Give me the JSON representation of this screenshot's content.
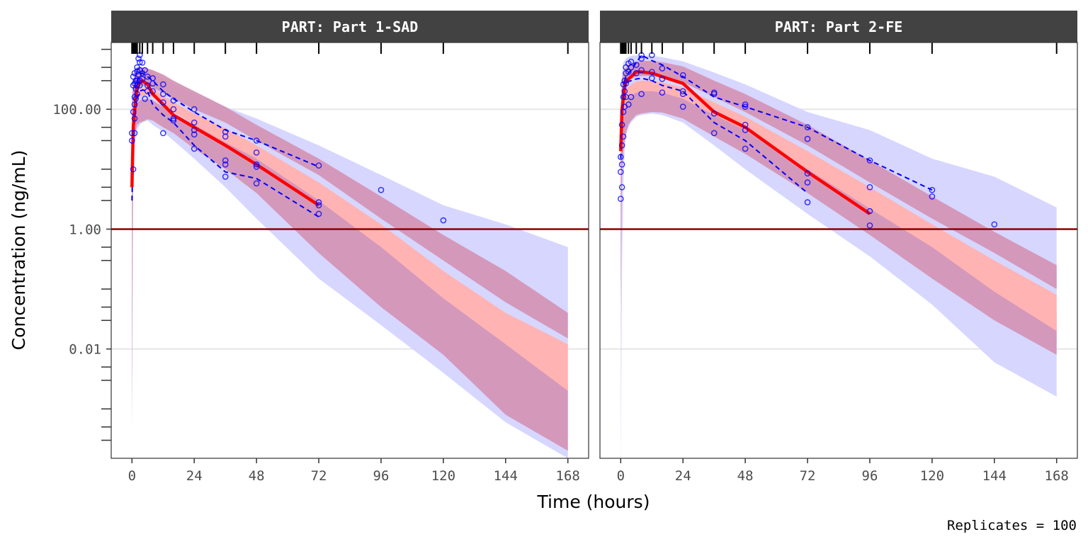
{
  "chart_data": {
    "type": "line",
    "xlabel": "Time (hours)",
    "ylabel": "Concentration (ng/mL)",
    "caption": "Replicates = 100",
    "x_ticks": [
      0,
      24,
      48,
      72,
      96,
      120,
      144,
      168
    ],
    "x_tick_labels": [
      "0",
      "24",
      "48",
      "72",
      "96",
      "120",
      "144",
      "168"
    ],
    "xlim": [
      -8,
      176
    ],
    "y_scale": "log10",
    "ylim": [
      0.00015,
      1300
    ],
    "y_ticks": [
      0.01,
      1,
      100
    ],
    "y_tick_labels": [
      "0.01",
      "1.00",
      "100.00"
    ],
    "reference_line_y": 1,
    "colors": {
      "strip_bg": "#424242",
      "outer_band": "#d6d6ff",
      "median_band": "#ffb3b3",
      "quantile_band": "#d495b7",
      "obs_median_line": "#ff0000",
      "obs_quantile_line": "#0000ff",
      "obs_points": "#0000ff",
      "reference_line": "#8b0000",
      "gridline": "#e5e5e5"
    },
    "panels": [
      {
        "strip_label": "PART: Part 1-SAD",
        "bins": [
          0,
          0.5,
          1,
          1.5,
          2,
          3,
          4,
          6,
          8,
          12,
          16,
          24,
          36,
          48,
          72,
          96,
          120,
          168
        ],
        "sim_bands": {
          "x": [
            0,
            0.5,
            1,
            1.5,
            2,
            3,
            4,
            6,
            8,
            12,
            16,
            24,
            36,
            48,
            72,
            96,
            120,
            144,
            168
          ],
          "pi_low": {
            "lo": [
              0.0005,
              25,
              40,
              45,
              55,
              60,
              62,
              68,
              65,
              50,
              40,
              22,
              10,
              4,
              0.4,
              0.05,
              0.008,
              0.0008,
              0.0002
            ],
            "hi": [
              60,
              80,
              100,
              120,
              130,
              140,
              145,
              150,
              140,
              110,
              85,
              55,
              30,
              15,
              4,
              0.7,
              0.12,
              0.02,
              0.0025
            ]
          },
          "pi_med": {
            "lo": [
              20,
              80,
              110,
              130,
              145,
              160,
              165,
              175,
              160,
              120,
              90,
              55,
              28,
              15,
              3,
              0.5,
              0.07,
              0.012,
              0.002
            ],
            "hi": [
              60,
              130,
              165,
              185,
              200,
              215,
              225,
              230,
              215,
              170,
              130,
              85,
              48,
              25,
              6,
              1.2,
              0.2,
              0.04,
              0.012
            ]
          },
          "pi_high": {
            "lo": [
              60,
              150,
              190,
              210,
              230,
              240,
              245,
              250,
              230,
              185,
              150,
              100,
              60,
              30,
              8,
              1.5,
              0.3,
              0.06,
              0.015
            ],
            "hi": [
              150,
              300,
              400,
              450,
              480,
              500,
              500,
              480,
              450,
              380,
              300,
              200,
              110,
              55,
              15,
              3.5,
              0.8,
              0.2,
              0.04
            ]
          },
          "outer": {
            "lo": [
              0.0005,
              10,
              25,
              35,
              45,
              55,
              60,
              65,
              55,
              42,
              30,
              15,
              5,
              1.5,
              0.15,
              0.025,
              0.004,
              0.0006,
              0.00015
            ],
            "hi": [
              100,
              300,
              450,
              500,
              520,
              520,
              500,
              460,
              400,
              320,
              260,
              180,
              110,
              70,
              25,
              8,
              2.5,
              1.2,
              0.5
            ]
          }
        },
        "obs_median": {
          "x": [
            0,
            0.5,
            1,
            1.5,
            2,
            3,
            4,
            6,
            8,
            12,
            16,
            24,
            36,
            48,
            72
          ],
          "y": [
            5,
            50,
            90,
            160,
            220,
            280,
            300,
            260,
            180,
            120,
            80,
            50,
            25,
            12,
            2.5
          ]
        },
        "obs_lo": {
          "x": [
            0,
            0.5,
            1,
            1.5,
            2,
            3,
            4,
            6,
            8,
            12,
            16,
            24,
            36,
            48,
            72
          ],
          "y": [
            3,
            30,
            60,
            100,
            150,
            200,
            210,
            200,
            120,
            80,
            60,
            25,
            9,
            7,
            1.6
          ]
        },
        "obs_hi": {
          "x": [
            0,
            0.5,
            1,
            1.5,
            2,
            3,
            4,
            6,
            8,
            12,
            16,
            24,
            36,
            48,
            72
          ],
          "y": [
            8,
            80,
            120,
            220,
            300,
            380,
            400,
            350,
            300,
            200,
            150,
            90,
            45,
            30,
            11
          ]
        },
        "points": {
          "x": [
            0,
            0,
            0.5,
            0.5,
            0.5,
            0.5,
            1,
            1,
            1,
            1,
            1,
            1,
            1.5,
            1.5,
            1.5,
            2,
            2,
            2,
            2,
            2,
            2.5,
            2.5,
            3,
            3,
            3,
            3,
            3,
            4,
            4,
            4,
            5,
            5,
            6,
            6,
            6,
            8,
            8,
            8,
            12,
            12,
            12,
            12,
            16,
            16,
            16,
            16,
            24,
            24,
            24,
            24,
            24,
            36,
            36,
            36,
            36,
            36,
            48,
            48,
            48,
            48,
            48,
            72,
            72,
            72,
            72,
            96,
            120
          ],
          "y": [
            40,
            30,
            350,
            250,
            90,
            10,
            400,
            270,
            160,
            120,
            70,
            40,
            300,
            220,
            150,
            500,
            430,
            300,
            250,
            180,
            700,
            380,
            800,
            610,
            450,
            300,
            250,
            600,
            400,
            320,
            450,
            150,
            350,
            250,
            200,
            330,
            270,
            200,
            260,
            180,
            130,
            40,
            140,
            100,
            70,
            65,
            100,
            60,
            45,
            38,
            22,
            42,
            35,
            14,
            12,
            7.5,
            30,
            19,
            12,
            11,
            5.8,
            11.5,
            2.8,
            2.5,
            1.8,
            4.5,
            1.4
          ]
        }
      },
      {
        "strip_label": "PART: Part 2-FE",
        "bins": [
          0,
          0.5,
          1,
          1.5,
          2,
          3,
          4,
          6,
          8,
          12,
          16,
          24,
          36,
          48,
          72,
          96,
          120,
          168
        ],
        "sim_bands": {
          "x": [
            0,
            0.5,
            1,
            1.5,
            2,
            3,
            4,
            6,
            8,
            12,
            16,
            24,
            36,
            48,
            72,
            96,
            120,
            144,
            168
          ],
          "pi_low": {
            "lo": [
              0.05,
              10,
              20,
              30,
              40,
              55,
              65,
              80,
              85,
              90,
              88,
              70,
              35,
              18,
              4,
              0.8,
              0.15,
              0.03,
              0.008
            ],
            "hi": [
              20,
              70,
              100,
              130,
              150,
              180,
              200,
              220,
              230,
              230,
              220,
              180,
              100,
              55,
              15,
              3.5,
              0.8,
              0.2,
              0.04
            ]
          },
          "pi_med": {
            "lo": [
              5,
              40,
              70,
              100,
              120,
              150,
              170,
              190,
              200,
              200,
              190,
              150,
              80,
              45,
              10,
              2.2,
              0.5,
              0.09,
              0.02
            ],
            "hi": [
              30,
              110,
              150,
              180,
              210,
              240,
              260,
              290,
              300,
              300,
              280,
              230,
              130,
              75,
              20,
              5,
              1.2,
              0.3,
              0.08
            ]
          },
          "pi_high": {
            "lo": [
              30,
              150,
              200,
              240,
              270,
              300,
              320,
              350,
              360,
              360,
              340,
              280,
              160,
              90,
              25,
              6,
              1.5,
              0.4,
              0.1
            ],
            "hi": [
              80,
              300,
              400,
              450,
              500,
              550,
              580,
              620,
              640,
              640,
              610,
              520,
              300,
              180,
              55,
              14,
              3.5,
              0.9,
              0.25
            ]
          },
          "outer": {
            "lo": [
              0.0001,
              0.2,
              5,
              20,
              35,
              50,
              60,
              75,
              80,
              85,
              80,
              60,
              25,
              10,
              1.8,
              0.35,
              0.055,
              0.006,
              0.0016
            ],
            "hi": [
              100,
              400,
              600,
              650,
              700,
              750,
              780,
              790,
              790,
              780,
              740,
              630,
              410,
              260,
              90,
              45,
              15,
              7.5,
              2.3
            ]
          }
        },
        "obs_median": {
          "x": [
            0,
            0.5,
            1,
            1.5,
            2,
            3,
            4,
            6,
            8,
            12,
            16,
            24,
            36,
            48,
            72,
            96
          ],
          "y": [
            20,
            100,
            150,
            230,
            290,
            320,
            350,
            420,
            420,
            400,
            350,
            270,
            90,
            50,
            9,
            1.8
          ]
        },
        "obs_lo": {
          "x": [
            0,
            0.5,
            1,
            1.5,
            2,
            3,
            4,
            6,
            8,
            12,
            16,
            24,
            36,
            48,
            72
          ],
          "y": [
            15,
            60,
            110,
            180,
            250,
            290,
            300,
            320,
            330,
            300,
            250,
            200,
            60,
            30,
            4
          ]
        },
        "obs_hi": {
          "x": [
            0,
            0.5,
            1,
            1.5,
            2,
            3,
            4,
            6,
            8,
            12,
            16,
            24,
            36,
            48,
            72,
            96,
            120
          ],
          "y": [
            30,
            150,
            200,
            300,
            350,
            400,
            450,
            600,
            800,
            650,
            550,
            350,
            160,
            110,
            50,
            14,
            4.5
          ]
        },
        "points": {
          "x": [
            0,
            0,
            0,
            0.5,
            0.5,
            0.5,
            0.5,
            1,
            1,
            1,
            1,
            1.5,
            1.5,
            1.5,
            2,
            2,
            2,
            2,
            3,
            3,
            3,
            4,
            4,
            4,
            6,
            6,
            8,
            8,
            8,
            8,
            12,
            12,
            12,
            16,
            16,
            16,
            24,
            24,
            24,
            24,
            36,
            36,
            36,
            36,
            48,
            48,
            48,
            48,
            48,
            72,
            72,
            72,
            72,
            72,
            96,
            96,
            96,
            96,
            120,
            120,
            144
          ],
          "y": [
            16,
            9,
            3.2,
            55,
            25,
            12,
            5,
            260,
            160,
            90,
            35,
            300,
            200,
            110,
            500,
            400,
            270,
            160,
            580,
            420,
            120,
            620,
            500,
            160,
            550,
            400,
            800,
            700,
            450,
            180,
            800,
            420,
            330,
            480,
            320,
            190,
            370,
            200,
            180,
            110,
            190,
            180,
            85,
            40,
            120,
            110,
            55,
            45,
            22,
            50,
            32,
            8.5,
            6,
            2.8,
            14,
            5,
            2,
            1.15,
            4.5,
            3.5,
            1.2
          ]
        }
      }
    ]
  }
}
